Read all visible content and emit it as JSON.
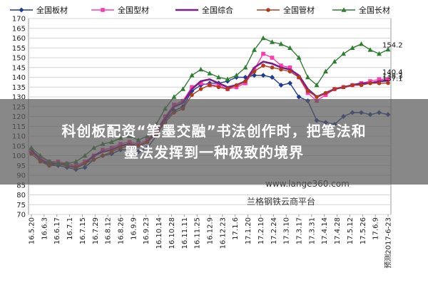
{
  "headline": {
    "line1": "科创板配资“笔墨交融”书法创作时，把笔法和",
    "line2": "墨法发挥到一种极致的境界"
  },
  "watermark": {
    "url": "www.lange360.com",
    "name": "兰格钢铁云商平台"
  },
  "chart_data": {
    "type": "line",
    "title": "",
    "xlabel": "",
    "ylabel": "",
    "ylim": [
      70,
      170
    ],
    "yticks": [
      70,
      75,
      80,
      85,
      90,
      95,
      100,
      105,
      110,
      115,
      120,
      125,
      130,
      135,
      140,
      145,
      150,
      155,
      160,
      165,
      170
    ],
    "grid": true,
    "legend_position": "top",
    "x_tick_labels": [
      "16.5.20",
      "16.6.3",
      "16.6.17",
      "16.7.1",
      "16.7.15",
      "16.7.29",
      "16.8.12",
      "16.8.26",
      "16.9.9",
      "16.9.23",
      "16.10.14",
      "16.10.28",
      "16.11.11",
      "16.11.25",
      "16.12.9",
      "16.12.23",
      "17.1.6",
      "17.1.20",
      "17.2.10",
      "17.2.24",
      "17.3.10",
      "17.3.17",
      "17.3.31",
      "17.4.14",
      "17.4.28",
      "17.5.12",
      "17.5.26",
      "17.6.9",
      "预测2017-6-23"
    ],
    "series": [
      {
        "name": "全国板材",
        "color": "#1f3a93",
        "marker": "diamond",
        "end_label": "",
        "values": [
          102,
          98,
          95,
          95,
          94,
          93,
          94,
          98,
          100,
          101,
          103,
          103,
          102,
          104,
          110,
          118,
          123,
          125,
          133,
          136,
          137,
          137,
          138,
          140,
          140,
          141,
          141,
          140,
          136,
          137,
          130,
          128,
          118,
          117,
          116,
          120,
          122,
          122,
          121,
          122,
          121
        ]
      },
      {
        "name": "全国型材",
        "color": "#ff3ab0",
        "marker": "square",
        "end_label": "",
        "values": [
          103,
          99,
          97,
          97,
          96,
          95,
          97,
          100,
          103,
          104,
          106,
          107,
          106,
          108,
          113,
          120,
          126,
          128,
          135,
          137,
          136,
          136,
          134,
          135,
          137,
          144,
          152,
          150,
          146,
          145,
          140,
          132,
          128,
          131,
          134,
          135,
          136,
          137,
          138,
          139,
          139
        ]
      },
      {
        "name": "全国综合",
        "color": "#7b1e8a",
        "marker": "none",
        "end_label": "138.3",
        "values": [
          103,
          98,
          96,
          96,
          95,
          94,
          96,
          100,
          102,
          103,
          105,
          106,
          105,
          107,
          112,
          119,
          125,
          127,
          134,
          138,
          139,
          137,
          135,
          136,
          138,
          145,
          148,
          147,
          145,
          144,
          141,
          134,
          130,
          132,
          134,
          135,
          136,
          137,
          137,
          138,
          138.3
        ]
      },
      {
        "name": "全国管材",
        "color": "#b03a1a",
        "marker": "circle",
        "end_label": "137.1",
        "values": [
          101,
          97,
          95,
          96,
          95,
          94,
          96,
          98,
          100,
          102,
          104,
          105,
          105,
          107,
          111,
          117,
          122,
          124,
          131,
          134,
          136,
          135,
          134,
          136,
          138,
          143,
          146,
          145,
          144,
          143,
          140,
          133,
          130,
          132,
          134,
          135,
          136,
          136,
          137,
          137,
          137.1
        ]
      },
      {
        "name": "全国长材",
        "color": "#2e7d32",
        "marker": "triangle",
        "end_label": "154.2",
        "values": [
          104,
          100,
          97,
          96,
          96,
          97,
          100,
          104,
          106,
          107,
          109,
          110,
          108,
          110,
          116,
          124,
          130,
          134,
          141,
          144,
          142,
          140,
          139,
          141,
          145,
          154,
          160,
          158,
          157,
          155,
          150,
          140,
          136,
          143,
          148,
          152,
          155,
          157,
          154,
          152,
          154.2
        ]
      },
      {
        "name": "",
        "color": "#555555",
        "marker": "none",
        "end_label": "140.4",
        "values": [
          null,
          null,
          null,
          null,
          null,
          null,
          null,
          null,
          null,
          null,
          null,
          null,
          null,
          null,
          null,
          null,
          null,
          null,
          null,
          null,
          null,
          null,
          null,
          null,
          null,
          null,
          null,
          null,
          null,
          null,
          null,
          null,
          null,
          null,
          null,
          null,
          null,
          null,
          null,
          null,
          140.4
        ]
      }
    ]
  }
}
